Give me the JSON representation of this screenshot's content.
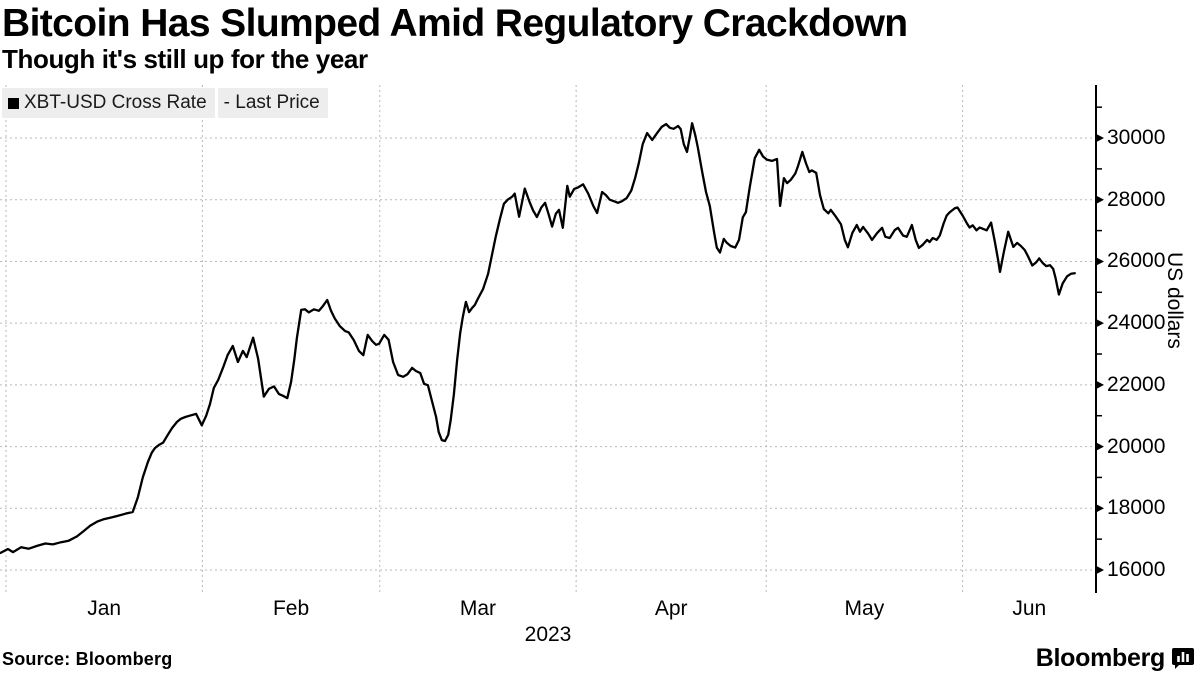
{
  "header": {
    "title": "Bitcoin Has Slumped Amid Regulatory Crackdown",
    "subtitle": "Though it's still up for the year"
  },
  "legend": {
    "series_label": "XBT-USD Cross Rate",
    "value_type": "- Last Price"
  },
  "footer": {
    "source": "Source:  Bloomberg",
    "brand": "Bloomberg"
  },
  "colors": {
    "line": "#000000",
    "axis": "#000000",
    "grid": "#b9b9b9",
    "legend_bg": "#ededed",
    "text": "#000000"
  },
  "chart_data": {
    "type": "line",
    "title": "Bitcoin Has Slumped Amid Regulatory Crackdown",
    "subtitle": "Though it's still up for the year",
    "ylabel": "US dollars",
    "year_label": "2023",
    "grid": true,
    "legend_position": "top-left",
    "x_unit": "day_of_year_2023",
    "x_tick_labels": [
      "Jan",
      "Feb",
      "Mar",
      "Apr",
      "May",
      "Jun"
    ],
    "month_start_days": [
      1,
      32,
      60,
      91,
      121,
      152
    ],
    "y_ticks": [
      16000,
      18000,
      20000,
      22000,
      24000,
      26000,
      28000,
      30000
    ],
    "y_minor_ticks": [
      17000,
      19000,
      21000,
      23000,
      25000,
      27000,
      29000,
      31000
    ],
    "ylim": [
      15250,
      31700
    ],
    "series": [
      {
        "name": "XBT-USD Cross Rate - Last Price",
        "points": [
          [
            0.1,
            16550
          ],
          [
            1.3,
            16680
          ],
          [
            2.1,
            16580
          ],
          [
            3.4,
            16740
          ],
          [
            4.6,
            16690
          ],
          [
            5.9,
            16780
          ],
          [
            7.2,
            16860
          ],
          [
            8.4,
            16830
          ],
          [
            9.7,
            16900
          ],
          [
            10.9,
            16950
          ],
          [
            12.2,
            17090
          ],
          [
            13.2,
            17250
          ],
          [
            14.3,
            17440
          ],
          [
            15.4,
            17570
          ],
          [
            16.5,
            17650
          ],
          [
            17.6,
            17700
          ],
          [
            18.7,
            17760
          ],
          [
            19.8,
            17820
          ],
          [
            21.0,
            17880
          ],
          [
            21.8,
            18350
          ],
          [
            22.6,
            19000
          ],
          [
            23.4,
            19500
          ],
          [
            24.0,
            19800
          ],
          [
            24.5,
            19950
          ],
          [
            25.2,
            20060
          ],
          [
            25.8,
            20130
          ],
          [
            26.6,
            20400
          ],
          [
            27.2,
            20600
          ],
          [
            28.0,
            20800
          ],
          [
            28.6,
            20900
          ],
          [
            29.3,
            20960
          ],
          [
            30.0,
            21000
          ],
          [
            31.0,
            21060
          ],
          [
            31.9,
            20690
          ],
          [
            32.6,
            21000
          ],
          [
            33.2,
            21380
          ],
          [
            33.8,
            21900
          ],
          [
            34.5,
            22160
          ],
          [
            35.3,
            22580
          ],
          [
            36.0,
            22970
          ],
          [
            36.8,
            23260
          ],
          [
            37.6,
            22740
          ],
          [
            38.4,
            23100
          ],
          [
            39.0,
            22900
          ],
          [
            40.0,
            23530
          ],
          [
            40.8,
            22850
          ],
          [
            41.7,
            21620
          ],
          [
            42.5,
            21870
          ],
          [
            43.3,
            21950
          ],
          [
            44.1,
            21700
          ],
          [
            44.7,
            21650
          ],
          [
            45.4,
            21570
          ],
          [
            46.0,
            22100
          ],
          [
            46.5,
            22800
          ],
          [
            46.9,
            23500
          ],
          [
            47.6,
            24430
          ],
          [
            48.2,
            24450
          ],
          [
            48.8,
            24350
          ],
          [
            49.6,
            24450
          ],
          [
            50.4,
            24400
          ],
          [
            51.0,
            24550
          ],
          [
            51.7,
            24750
          ],
          [
            52.3,
            24400
          ],
          [
            52.9,
            24150
          ],
          [
            53.7,
            23900
          ],
          [
            54.5,
            23750
          ],
          [
            55.1,
            23700
          ],
          [
            55.9,
            23450
          ],
          [
            56.7,
            23100
          ],
          [
            57.4,
            22960
          ],
          [
            58.1,
            23620
          ],
          [
            58.8,
            23420
          ],
          [
            59.4,
            23300
          ],
          [
            59.9,
            23330
          ],
          [
            60.7,
            23620
          ],
          [
            61.4,
            23460
          ],
          [
            62.1,
            22740
          ],
          [
            62.9,
            22320
          ],
          [
            63.7,
            22260
          ],
          [
            64.4,
            22350
          ],
          [
            65.1,
            22550
          ],
          [
            65.7,
            22450
          ],
          [
            66.4,
            22380
          ],
          [
            67.0,
            22030
          ],
          [
            67.6,
            21990
          ],
          [
            68.2,
            21510
          ],
          [
            68.9,
            20960
          ],
          [
            69.3,
            20470
          ],
          [
            69.8,
            20210
          ],
          [
            70.3,
            20180
          ],
          [
            70.8,
            20380
          ],
          [
            71.2,
            20860
          ],
          [
            71.7,
            21700
          ],
          [
            72.2,
            22800
          ],
          [
            72.7,
            23680
          ],
          [
            73.1,
            24200
          ],
          [
            73.6,
            24690
          ],
          [
            74.1,
            24360
          ],
          [
            74.6,
            24500
          ],
          [
            75.0,
            24590
          ],
          [
            75.5,
            24800
          ],
          [
            76.3,
            25100
          ],
          [
            77.1,
            25600
          ],
          [
            77.7,
            26200
          ],
          [
            78.3,
            26800
          ],
          [
            79.0,
            27400
          ],
          [
            79.6,
            27870
          ],
          [
            80.2,
            28000
          ],
          [
            80.9,
            28100
          ],
          [
            81.3,
            28200
          ],
          [
            82.0,
            27450
          ],
          [
            82.9,
            28360
          ],
          [
            83.6,
            27950
          ],
          [
            84.2,
            27650
          ],
          [
            84.8,
            27440
          ],
          [
            85.5,
            27750
          ],
          [
            86.1,
            27900
          ],
          [
            86.7,
            27500
          ],
          [
            87.2,
            27130
          ],
          [
            87.8,
            27550
          ],
          [
            88.3,
            27670
          ],
          [
            88.9,
            27090
          ],
          [
            89.6,
            28450
          ],
          [
            90.0,
            28100
          ],
          [
            90.7,
            28350
          ],
          [
            91.3,
            28400
          ],
          [
            92.1,
            28500
          ],
          [
            92.9,
            28200
          ],
          [
            93.7,
            27800
          ],
          [
            94.3,
            27570
          ],
          [
            95.1,
            28250
          ],
          [
            95.7,
            28150
          ],
          [
            96.3,
            28000
          ],
          [
            97.0,
            27950
          ],
          [
            97.6,
            27900
          ],
          [
            98.2,
            27950
          ],
          [
            99.0,
            28060
          ],
          [
            99.7,
            28300
          ],
          [
            100.3,
            28700
          ],
          [
            100.9,
            29200
          ],
          [
            101.5,
            29800
          ],
          [
            102.2,
            30160
          ],
          [
            103.0,
            29940
          ],
          [
            103.9,
            30200
          ],
          [
            104.5,
            30360
          ],
          [
            105.2,
            30450
          ],
          [
            105.8,
            30330
          ],
          [
            106.4,
            30300
          ],
          [
            107.1,
            30390
          ],
          [
            107.5,
            30290
          ],
          [
            108.0,
            29800
          ],
          [
            108.5,
            29550
          ],
          [
            109.0,
            30100
          ],
          [
            109.3,
            30480
          ],
          [
            109.8,
            30100
          ],
          [
            110.2,
            29700
          ],
          [
            110.9,
            28900
          ],
          [
            111.5,
            28250
          ],
          [
            112.1,
            27800
          ],
          [
            112.8,
            26900
          ],
          [
            113.2,
            26450
          ],
          [
            113.7,
            26290
          ],
          [
            114.3,
            26730
          ],
          [
            114.8,
            26600
          ],
          [
            115.4,
            26500
          ],
          [
            116.1,
            26450
          ],
          [
            116.7,
            26700
          ],
          [
            117.3,
            27430
          ],
          [
            117.8,
            27600
          ],
          [
            118.4,
            28400
          ],
          [
            119.2,
            29350
          ],
          [
            119.9,
            29620
          ],
          [
            120.5,
            29400
          ],
          [
            121.1,
            29300
          ],
          [
            121.9,
            29260
          ],
          [
            122.7,
            29320
          ],
          [
            123.2,
            27800
          ],
          [
            123.8,
            28700
          ],
          [
            124.3,
            28540
          ],
          [
            124.9,
            28650
          ],
          [
            125.6,
            28850
          ],
          [
            126.0,
            29080
          ],
          [
            126.7,
            29550
          ],
          [
            127.3,
            29170
          ],
          [
            127.8,
            28900
          ],
          [
            128.2,
            28950
          ],
          [
            128.9,
            28870
          ],
          [
            129.5,
            28150
          ],
          [
            130.1,
            27700
          ],
          [
            130.8,
            27560
          ],
          [
            131.2,
            27670
          ],
          [
            132.0,
            27450
          ],
          [
            132.8,
            27200
          ],
          [
            133.4,
            26700
          ],
          [
            133.9,
            26460
          ],
          [
            134.6,
            26930
          ],
          [
            135.3,
            27180
          ],
          [
            135.8,
            26960
          ],
          [
            136.3,
            27120
          ],
          [
            137.1,
            26900
          ],
          [
            137.7,
            26700
          ],
          [
            138.5,
            26920
          ],
          [
            139.3,
            27090
          ],
          [
            139.8,
            26800
          ],
          [
            140.5,
            26760
          ],
          [
            141.3,
            27020
          ],
          [
            141.8,
            27090
          ],
          [
            142.6,
            26840
          ],
          [
            143.2,
            26800
          ],
          [
            144.0,
            27180
          ],
          [
            144.6,
            26700
          ],
          [
            145.1,
            26440
          ],
          [
            145.7,
            26540
          ],
          [
            146.4,
            26700
          ],
          [
            146.8,
            26630
          ],
          [
            147.3,
            26760
          ],
          [
            147.9,
            26700
          ],
          [
            148.4,
            26840
          ],
          [
            149.0,
            27230
          ],
          [
            149.5,
            27490
          ],
          [
            150.0,
            27600
          ],
          [
            150.8,
            27730
          ],
          [
            151.2,
            27750
          ],
          [
            152.0,
            27490
          ],
          [
            152.7,
            27230
          ],
          [
            153.1,
            27100
          ],
          [
            153.6,
            27170
          ],
          [
            154.2,
            27010
          ],
          [
            154.7,
            27100
          ],
          [
            155.3,
            27050
          ],
          [
            155.8,
            27010
          ],
          [
            156.5,
            27260
          ],
          [
            157.1,
            26630
          ],
          [
            157.6,
            26050
          ],
          [
            157.9,
            25660
          ],
          [
            158.5,
            26300
          ],
          [
            159.2,
            26960
          ],
          [
            160.0,
            26470
          ],
          [
            160.6,
            26600
          ],
          [
            161.2,
            26500
          ],
          [
            161.8,
            26370
          ],
          [
            162.3,
            26180
          ],
          [
            163.0,
            25870
          ],
          [
            163.6,
            25970
          ],
          [
            164.1,
            26100
          ],
          [
            164.7,
            25940
          ],
          [
            165.2,
            25850
          ],
          [
            165.8,
            25880
          ],
          [
            166.3,
            25760
          ],
          [
            166.7,
            25440
          ],
          [
            167.2,
            24930
          ],
          [
            167.8,
            25290
          ],
          [
            168.5,
            25520
          ],
          [
            169.1,
            25600
          ],
          [
            169.7,
            25620
          ]
        ]
      }
    ]
  }
}
